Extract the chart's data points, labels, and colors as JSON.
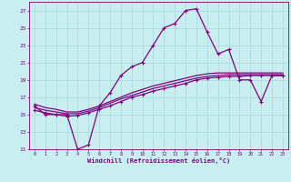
{
  "xlabel": "Windchill (Refroidissement éolien,°C)",
  "bg_color": "#c8eef0",
  "grid_color": "#a8d8dc",
  "line_color": "#800080",
  "xlim": [
    -0.5,
    23.5
  ],
  "ylim": [
    11,
    28
  ],
  "xticks": [
    0,
    1,
    2,
    3,
    4,
    5,
    6,
    7,
    8,
    9,
    10,
    11,
    12,
    13,
    14,
    15,
    16,
    17,
    18,
    19,
    20,
    21,
    22,
    23
  ],
  "yticks": [
    11,
    13,
    15,
    17,
    19,
    21,
    23,
    25,
    27
  ],
  "curve1_x": [
    0,
    1,
    2,
    3,
    4,
    5,
    6,
    7,
    8,
    9,
    10,
    11,
    12,
    13,
    14,
    15,
    16,
    17,
    18,
    19,
    20,
    21,
    22,
    23
  ],
  "curve1_y": [
    16.0,
    15.0,
    15.0,
    15.0,
    11.0,
    11.5,
    16.0,
    17.5,
    19.5,
    20.5,
    21.0,
    23.0,
    25.0,
    25.5,
    27.0,
    27.2,
    24.5,
    22.0,
    22.5,
    19.0,
    19.0,
    16.5,
    19.5,
    19.5
  ],
  "curve2_x": [
    0,
    1,
    2,
    3,
    4,
    5,
    6,
    7,
    8,
    9,
    10,
    11,
    12,
    13,
    14,
    15,
    16,
    17,
    18,
    19,
    20,
    21,
    22,
    23
  ],
  "curve2_y": [
    15.5,
    15.2,
    15.0,
    14.8,
    14.9,
    15.2,
    15.6,
    16.0,
    16.5,
    17.0,
    17.3,
    17.7,
    18.0,
    18.3,
    18.6,
    19.0,
    19.2,
    19.3,
    19.4,
    19.4,
    19.5,
    19.5,
    19.5,
    19.5
  ],
  "curve3_x": [
    0,
    1,
    2,
    3,
    4,
    5,
    6,
    7,
    8,
    9,
    10,
    11,
    12,
    13,
    14,
    15,
    16,
    17,
    18,
    19,
    20,
    21,
    22,
    23
  ],
  "curve3_y": [
    15.8,
    15.5,
    15.3,
    15.1,
    15.1,
    15.4,
    15.8,
    16.3,
    16.8,
    17.2,
    17.6,
    18.0,
    18.3,
    18.6,
    18.9,
    19.2,
    19.4,
    19.5,
    19.6,
    19.6,
    19.6,
    19.6,
    19.6,
    19.6
  ],
  "curve4_x": [
    0,
    1,
    2,
    3,
    4,
    5,
    6,
    7,
    8,
    9,
    10,
    11,
    12,
    13,
    14,
    15,
    16,
    17,
    18,
    19,
    20,
    21,
    22,
    23
  ],
  "curve4_y": [
    16.2,
    15.8,
    15.6,
    15.3,
    15.3,
    15.6,
    16.0,
    16.5,
    17.0,
    17.5,
    17.9,
    18.3,
    18.6,
    18.9,
    19.2,
    19.5,
    19.7,
    19.8,
    19.8,
    19.8,
    19.8,
    19.8,
    19.8,
    19.8
  ]
}
